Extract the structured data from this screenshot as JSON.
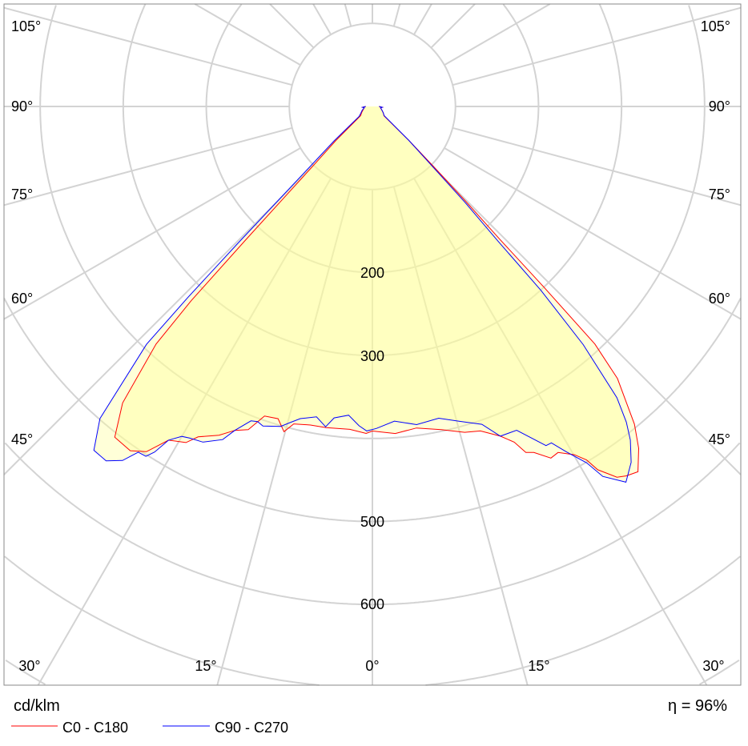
{
  "chart_data": {
    "type": "polar",
    "unit_label": "cd/klm",
    "efficiency_label": "η = 96%",
    "efficiency_percent": 96,
    "radial_range": [
      0,
      800
    ],
    "radial_ring_step": 100,
    "radial_tick_labels": [
      "200",
      "300",
      "500",
      "600"
    ],
    "radial_tick_values": [
      200,
      300,
      500,
      600
    ],
    "angle_step_deg": 15,
    "angle_labels_left": [
      "105°",
      "90°",
      "75°",
      "60°",
      "45°"
    ],
    "angle_labels_right": [
      "105°",
      "90°",
      "75°",
      "60°",
      "45°"
    ],
    "angle_labels_bottom": [
      "30°",
      "15°",
      "0°",
      "15°",
      "30°"
    ],
    "grid": true,
    "legend_position": "bottom-left",
    "fill_color": "#ffff99",
    "series": [
      {
        "name": "C0 - C180",
        "color": "#ff0000",
        "points": [
          [
            -90,
            8
          ],
          [
            -85,
            12
          ],
          [
            -80,
            10
          ],
          [
            -70,
            12
          ],
          [
            -60,
            15
          ],
          [
            -52,
            18
          ],
          [
            -47,
            60
          ],
          [
            -45,
            100
          ],
          [
            -44,
            160
          ],
          [
            -43.5,
            222
          ],
          [
            -43,
            320
          ],
          [
            -42.3,
            387
          ],
          [
            -40.1,
            467
          ],
          [
            -37.9,
            505
          ],
          [
            -35.1,
            507
          ],
          [
            -33.2,
            497
          ],
          [
            -31.4,
            471
          ],
          [
            -29,
            463
          ],
          [
            -27.8,
            450
          ],
          [
            -25,
            437
          ],
          [
            -23,
            424
          ],
          [
            -21,
            417
          ],
          [
            -19.2,
            395
          ],
          [
            -16.8,
            393
          ],
          [
            -15.2,
            406
          ],
          [
            -13.9,
            394
          ],
          [
            -11,
            391
          ],
          [
            -8.2,
            391
          ],
          [
            -4,
            390
          ],
          [
            -1.1,
            394
          ],
          [
            0,
            391
          ],
          [
            4,
            395
          ],
          [
            7.8,
            391
          ],
          [
            12,
            398
          ],
          [
            15.8,
            408
          ],
          [
            18.4,
            412
          ],
          [
            21.2,
            426
          ],
          [
            22.9,
            439
          ],
          [
            23.9,
            456
          ],
          [
            25,
            460
          ],
          [
            26.9,
            475
          ],
          [
            28.2,
            473
          ],
          [
            30.1,
            485
          ],
          [
            31.2,
            498
          ],
          [
            31.8,
            515
          ],
          [
            33.4,
            535
          ],
          [
            34.5,
            540
          ],
          [
            36,
            544
          ],
          [
            37.9,
            522
          ],
          [
            39.5,
            496
          ],
          [
            42,
            441
          ],
          [
            43.1,
            392
          ],
          [
            43.5,
            300
          ],
          [
            43.8,
            222
          ],
          [
            44.5,
            160
          ],
          [
            45.5,
            104
          ],
          [
            47,
            60
          ],
          [
            51,
            18
          ],
          [
            60,
            15
          ],
          [
            70,
            12
          ],
          [
            80,
            10
          ],
          [
            85,
            12
          ],
          [
            90,
            8
          ]
        ]
      },
      {
        "name": "C90 - C270",
        "color": "#0000ff",
        "points": [
          [
            -90,
            8
          ],
          [
            -85,
            12
          ],
          [
            -80,
            10
          ],
          [
            -70,
            13
          ],
          [
            -60,
            16
          ],
          [
            -53,
            20
          ],
          [
            -48,
            62
          ],
          [
            -46,
            105
          ],
          [
            -45,
            165
          ],
          [
            -44.5,
            230
          ],
          [
            -44,
            320
          ],
          [
            -43.5,
            395
          ],
          [
            -41.1,
            499
          ],
          [
            -39,
            533
          ],
          [
            -36.9,
            534
          ],
          [
            -35.2,
            522
          ],
          [
            -34.1,
            503
          ],
          [
            -32.9,
            502
          ],
          [
            -32.2,
            492
          ],
          [
            -31.4,
            471
          ],
          [
            -30,
            459
          ],
          [
            -28.8,
            456
          ],
          [
            -26.8,
            453
          ],
          [
            -24.2,
            440
          ],
          [
            -23,
            424
          ],
          [
            -21.1,
            406
          ],
          [
            -20,
            404
          ],
          [
            -18.9,
            407
          ],
          [
            -16,
            401
          ],
          [
            -14.5,
            393
          ],
          [
            -13,
            386
          ],
          [
            -10.2,
            380
          ],
          [
            -8.3,
            390
          ],
          [
            -7,
            378
          ],
          [
            -4.4,
            373
          ],
          [
            -2.4,
            385
          ],
          [
            -1,
            391
          ],
          [
            0.7,
            388
          ],
          [
            4,
            380
          ],
          [
            7.9,
            387
          ],
          [
            12,
            384
          ],
          [
            15.6,
            394
          ],
          [
            19,
            405
          ],
          [
            21.2,
            426
          ],
          [
            24,
            427
          ],
          [
            27.1,
            459
          ],
          [
            28,
            459
          ],
          [
            29.3,
            477
          ],
          [
            31,
            501
          ],
          [
            31.9,
            525
          ],
          [
            34,
            546
          ],
          [
            36,
            530
          ],
          [
            37.7,
            508
          ],
          [
            38.8,
            488
          ],
          [
            40,
            458
          ],
          [
            41.5,
            383
          ],
          [
            42.5,
            300
          ],
          [
            43,
            222
          ],
          [
            44,
            160
          ],
          [
            45,
            104
          ],
          [
            47,
            60
          ],
          [
            52,
            18
          ],
          [
            60,
            15
          ],
          [
            70,
            12
          ],
          [
            80,
            10
          ],
          [
            85,
            12
          ],
          [
            90,
            8
          ]
        ]
      }
    ]
  }
}
